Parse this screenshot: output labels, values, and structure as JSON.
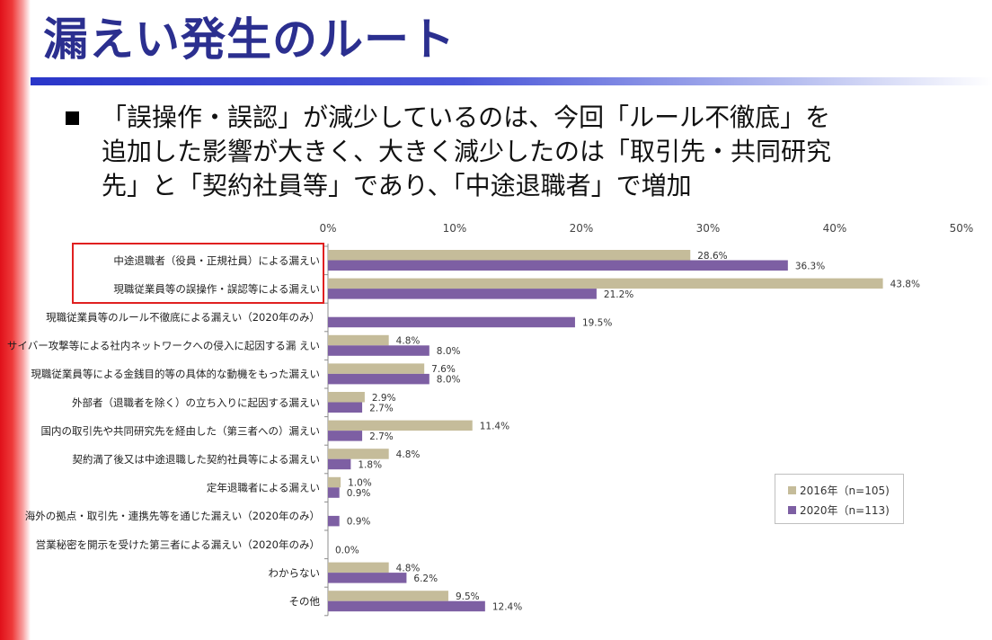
{
  "slide": {
    "title": "漏えい発生のルート",
    "bullet_icon": "square-bullet-icon",
    "body_lines": [
      "「誤操作・誤認」が減少しているのは、今回「ルール不徹底」を",
      "追加した影響が大きく、大きく減少したのは「取引先・共同研究",
      "先」と「契約社員等」であり、「中途退職者」で増加"
    ],
    "colors": {
      "title": "#2b2f8f",
      "accent_bar": "#e0101a",
      "rule": "#2a36c9",
      "highlight_box": "#e02020"
    }
  },
  "chart_data": {
    "type": "bar",
    "orientation": "horizontal",
    "x_ticks": [
      "0%",
      "10%",
      "20%",
      "30%",
      "40%",
      "50%"
    ],
    "xlim": [
      0,
      50
    ],
    "x_axis_position": "top",
    "grid": false,
    "legend_position": "bottom-right",
    "highlighted_categories": [
      0,
      1
    ],
    "categories": [
      "中途退職者（役員・正規社員）による漏えい",
      "現職従業員等の誤操作・誤認等による漏えい",
      "現職従業員等のルール不徹底による漏えい（2020年のみ）",
      "サイバー攻撃等による社内ネットワークへの侵入に起因する漏 えい",
      "現職従業員等による金銭目的等の具体的な動機をもった漏えい",
      "外部者（退職者を除く）の立ち入りに起因する漏えい",
      "国内の取引先や共同研究先を経由した（第三者への）漏えい",
      "契約満了後又は中途退職した契約社員等による漏えい",
      "定年退職者による漏えい",
      "海外の拠点・取引先・連携先等を通じた漏えい（2020年のみ）",
      "営業秘密を開示を受けた第三者による漏えい（2020年のみ）",
      "わからない",
      "その他"
    ],
    "series": [
      {
        "name": "2016年（n=105)",
        "color": "#c5bc9a",
        "values": [
          28.6,
          43.8,
          null,
          4.8,
          7.6,
          2.9,
          11.4,
          4.8,
          1.0,
          null,
          null,
          4.8,
          9.5
        ],
        "labels": [
          "28.6%",
          "43.8%",
          null,
          "4.8%",
          "7.6%",
          "2.9%",
          "11.4%",
          "4.8%",
          "1.0%",
          null,
          null,
          "4.8%",
          "9.5%"
        ]
      },
      {
        "name": "2020年（n=113)",
        "color": "#7d5fa3",
        "values": [
          36.3,
          21.2,
          19.5,
          8.0,
          8.0,
          2.7,
          2.7,
          1.8,
          0.9,
          0.9,
          0.0,
          6.2,
          12.4
        ],
        "labels": [
          "36.3%",
          "21.2%",
          "19.5%",
          "8.0%",
          "8.0%",
          "2.7%",
          "2.7%",
          "1.8%",
          "0.9%",
          "0.9%",
          "0.0%",
          "6.2%",
          "12.4%"
        ]
      }
    ]
  }
}
